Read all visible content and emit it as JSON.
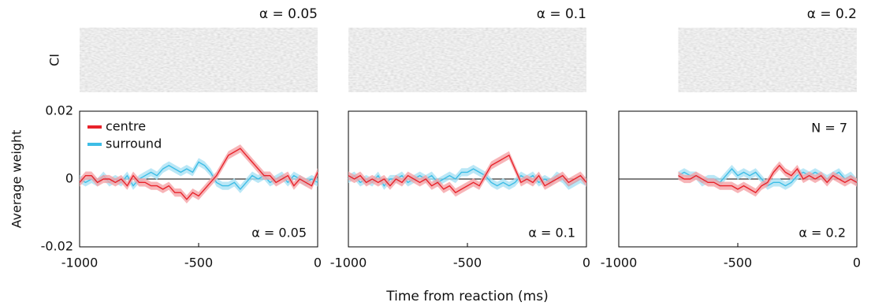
{
  "chart_data": [
    {
      "type": "line",
      "title": "α = 0.05",
      "annotation": "α = 0.05",
      "image_label": "CI",
      "y_label": "Average weight",
      "legend": true,
      "x": [
        -1000,
        -975,
        -950,
        -925,
        -900,
        -875,
        -850,
        -825,
        -800,
        -775,
        -750,
        -725,
        -700,
        -675,
        -650,
        -625,
        -600,
        -575,
        -550,
        -525,
        -500,
        -475,
        -450,
        -425,
        -400,
        -375,
        -350,
        -325,
        -300,
        -275,
        -250,
        -225,
        -200,
        -175,
        -150,
        -125,
        -100,
        -75,
        -50,
        -25,
        0
      ],
      "xlim": [
        -1000,
        0
      ],
      "xticks": [
        -1000,
        -500,
        0
      ],
      "ylim": [
        -0.02,
        0.02
      ],
      "yticks": [
        -0.02,
        0,
        0.02
      ],
      "series": [
        {
          "name": "centre",
          "color": "#e8232b",
          "band_color": "#f5a3a6",
          "error": 0.0012,
          "values": [
            -0.001,
            0.001,
            0.001,
            -0.001,
            0,
            0,
            -0.001,
            0,
            -0.002,
            0.001,
            -0.001,
            -0.001,
            -0.002,
            -0.002,
            -0.003,
            -0.002,
            -0.004,
            -0.004,
            -0.006,
            -0.004,
            -0.005,
            -0.003,
            -0.001,
            0.001,
            0.004,
            0.007,
            0.008,
            0.009,
            0.007,
            0.005,
            0.003,
            0.001,
            0.001,
            -0.001,
            0,
            0.001,
            -0.002,
            0,
            -0.001,
            -0.002,
            0.002
          ]
        },
        {
          "name": "surround",
          "color": "#3dbde6",
          "band_color": "#a9e1f4",
          "error": 0.0012,
          "values": [
            0,
            -0.001,
            0,
            -0.001,
            0.001,
            -0.001,
            0,
            -0.001,
            0.001,
            -0.002,
            0,
            0.001,
            0.002,
            0.001,
            0.003,
            0.004,
            0.003,
            0.002,
            0.003,
            0.002,
            0.005,
            0.004,
            0.002,
            -0.001,
            -0.002,
            -0.002,
            -0.001,
            -0.003,
            -0.001,
            0.001,
            0,
            0.001,
            -0.001,
            0,
            0.001,
            -0.001,
            0.001,
            0,
            -0.001,
            0,
            -0.001
          ]
        }
      ]
    },
    {
      "type": "line",
      "title": "α = 0.1",
      "annotation": "α = 0.1",
      "x_label": "Time from reaction (ms)",
      "x": [
        -1000,
        -975,
        -950,
        -925,
        -900,
        -875,
        -850,
        -825,
        -800,
        -775,
        -750,
        -725,
        -700,
        -675,
        -650,
        -625,
        -600,
        -575,
        -550,
        -525,
        -500,
        -475,
        -450,
        -425,
        -400,
        -375,
        -350,
        -325,
        -300,
        -275,
        -250,
        -225,
        -200,
        -175,
        -150,
        -125,
        -100,
        -75,
        -50,
        -25,
        0
      ],
      "xlim": [
        -1000,
        0
      ],
      "xticks": [
        -1000,
        -500,
        0
      ],
      "ylim": [
        -0.02,
        0.02
      ],
      "yticks": [
        -0.02,
        0,
        0.02
      ],
      "series": [
        {
          "name": "centre",
          "color": "#e8232b",
          "band_color": "#f5a3a6",
          "error": 0.0012,
          "values": [
            0.001,
            0,
            0.001,
            -0.001,
            0,
            -0.001,
            0,
            -0.002,
            0,
            -0.001,
            0.001,
            0,
            -0.001,
            0,
            -0.002,
            -0.001,
            -0.003,
            -0.002,
            -0.004,
            -0.003,
            -0.002,
            -0.001,
            -0.002,
            0.001,
            0.004,
            0.005,
            0.006,
            0.007,
            0.003,
            -0.001,
            0,
            -0.001,
            0.001,
            -0.002,
            -0.001,
            0,
            0.001,
            -0.001,
            0,
            0.001,
            -0.001
          ]
        },
        {
          "name": "surround",
          "color": "#3dbde6",
          "band_color": "#a9e1f4",
          "error": 0.0012,
          "values": [
            0,
            0.001,
            -0.001,
            0,
            -0.001,
            0.001,
            -0.002,
            0,
            0,
            0.001,
            -0.001,
            0,
            0.001,
            0,
            0.001,
            -0.001,
            0,
            0.001,
            0,
            0.002,
            0.002,
            0.003,
            0.002,
            0.001,
            -0.001,
            -0.002,
            -0.001,
            -0.002,
            -0.001,
            0.001,
            0,
            0.001,
            -0.001,
            0,
            -0.001,
            0.001,
            0,
            -0.002,
            -0.001,
            0,
            -0.001
          ]
        }
      ]
    },
    {
      "type": "line",
      "title": "α = 0.2",
      "annotation": "α = 0.2",
      "note": "N = 7",
      "image_start": -750,
      "x": [
        -1000,
        -975,
        -950,
        -925,
        -900,
        -875,
        -850,
        -825,
        -800,
        -775,
        -750,
        -725,
        -700,
        -675,
        -650,
        -625,
        -600,
        -575,
        -550,
        -525,
        -500,
        -475,
        -450,
        -425,
        -400,
        -375,
        -350,
        -325,
        -300,
        -275,
        -250,
        -225,
        -200,
        -175,
        -150,
        -125,
        -100,
        -75,
        -50,
        -25,
        0
      ],
      "xlim": [
        -1000,
        0
      ],
      "xticks": [
        -1000,
        -500,
        0
      ],
      "ylim": [
        -0.02,
        0.02
      ],
      "yticks": [
        -0.02,
        0,
        0.02
      ],
      "series": [
        {
          "name": "centre",
          "color": "#e8232b",
          "band_color": "#f5a3a6",
          "error": 0.0012,
          "values": [
            null,
            null,
            null,
            null,
            null,
            null,
            null,
            null,
            null,
            null,
            0.001,
            0,
            0,
            0.001,
            0,
            -0.001,
            -0.001,
            -0.002,
            -0.002,
            -0.002,
            -0.003,
            -0.002,
            -0.003,
            -0.004,
            -0.002,
            -0.001,
            0.002,
            0.004,
            0.002,
            0.001,
            0.003,
            0,
            0.001,
            0,
            0.001,
            -0.001,
            0.001,
            0,
            -0.001,
            0,
            -0.001
          ]
        },
        {
          "name": "surround",
          "color": "#3dbde6",
          "band_color": "#a9e1f4",
          "error": 0.0012,
          "values": [
            null,
            null,
            null,
            null,
            null,
            null,
            null,
            null,
            null,
            null,
            0.001,
            0.002,
            0.001,
            0.001,
            -0.001,
            0,
            0,
            -0.001,
            0.001,
            0.003,
            0.001,
            0.002,
            0.001,
            0.002,
            0,
            -0.002,
            -0.001,
            -0.001,
            -0.002,
            -0.001,
            0.001,
            0.002,
            0.001,
            0.002,
            0.001,
            0,
            0.001,
            0.002,
            0,
            0.001,
            -0.001
          ]
        }
      ]
    }
  ]
}
